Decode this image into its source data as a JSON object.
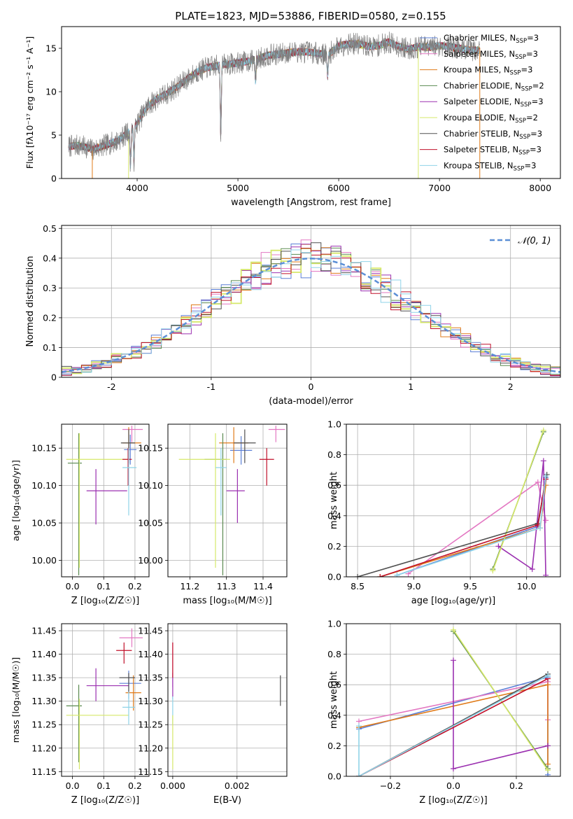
{
  "figure_title": "PLATE=1823, MJD=53886, FIBERID=0580, z=0.155",
  "series": [
    {
      "name": "Chabrier MILES",
      "nssp": "3",
      "color": "#5b7fd6"
    },
    {
      "name": "Salpeter MILES",
      "nssp": "3",
      "color": "#e377c2"
    },
    {
      "name": "Kroupa MILES",
      "nssp": "3",
      "color": "#e07b1a"
    },
    {
      "name": "Chabrier ELODIE",
      "nssp": "2",
      "color": "#5a8a50"
    },
    {
      "name": "Salpeter ELODIE",
      "nssp": "3",
      "color": "#9b30b0"
    },
    {
      "name": "Kroupa ELODIE",
      "nssp": "2",
      "color": "#d6e86a"
    },
    {
      "name": "Chabrier STELIB",
      "nssp": "3",
      "color": "#505050"
    },
    {
      "name": "Salpeter STELIB",
      "nssp": "3",
      "color": "#c0102a"
    },
    {
      "name": "Kroupa STELIB",
      "nssp": "3",
      "color": "#8fd3e8"
    }
  ],
  "chart_data": [
    {
      "type": "line",
      "id": "spectrum",
      "title": "PLATE=1823, MJD=53886, FIBERID=0580, z=0.155",
      "xlabel": "wavelength [Angstrom, rest frame]",
      "ylabel": "Flux [fλ10⁻¹⁷ erg cm⁻² s⁻¹ A⁻¹]",
      "xlim": [
        3250,
        8200
      ],
      "ylim": [
        0,
        17.5
      ],
      "xticks": [
        4000,
        5000,
        6000,
        7000,
        8000
      ],
      "yticks": [
        0,
        5,
        10,
        15
      ],
      "legend": "right",
      "data_color": "#808080",
      "data_envelope": {
        "x": [
          3320,
          3400,
          3500,
          3560,
          3600,
          3700,
          3800,
          3900,
          4000,
          4100,
          4200,
          4300,
          4400,
          4500,
          4600,
          4700,
          4800,
          4900,
          5000,
          5100,
          5200,
          5300,
          5400,
          5500,
          5600,
          5700,
          5800,
          5900,
          6000,
          6100,
          6200,
          6300,
          6400,
          6500,
          6600,
          6700,
          6800,
          6900,
          7000,
          7100,
          7200,
          7300,
          7400
        ],
        "y": [
          3.7,
          3.8,
          3.6,
          3.3,
          3.5,
          3.9,
          4.3,
          5.2,
          6.3,
          8.3,
          9.2,
          9.8,
          10.6,
          11.5,
          12.3,
          12.8,
          13.0,
          13.2,
          13.3,
          13.5,
          13.8,
          14.2,
          14.3,
          14.5,
          14.6,
          14.6,
          14.4,
          14.3,
          15.3,
          15.5,
          15.5,
          15.2,
          15.3,
          15.7,
          15.2,
          14.9,
          15.2,
          15.1,
          15.3,
          15.2,
          15.0,
          14.8,
          14.8
        ]
      },
      "absorption_features": [
        {
          "x": 3934,
          "y": 1.2
        },
        {
          "x": 3968,
          "y": 1.8
        },
        {
          "x": 4830,
          "y": 4.2
        },
        {
          "x": 5175,
          "y": 11.0
        },
        {
          "x": 5890,
          "y": 11.5
        }
      ]
    },
    {
      "type": "line",
      "id": "residuals",
      "xlabel": "(data-model)/error",
      "ylabel": "Normed distribution",
      "xlim": [
        -2.5,
        2.5
      ],
      "ylim": [
        0,
        0.51
      ],
      "xticks": [
        -2,
        -1,
        0,
        1,
        2
      ],
      "yticks": [
        0.0,
        0.1,
        0.2,
        0.3,
        0.4,
        0.5
      ],
      "grid": true,
      "legend": "top-right",
      "reference": {
        "name": "𝒩(0, 1)",
        "mean": 0,
        "sd": 1,
        "color": "#5b8fd6"
      },
      "bin_width": 0.1
    },
    {
      "type": "scatter",
      "id": "age_vs_Z",
      "xlabel": "Z [log₁₀(Z/Z☉)]",
      "ylabel": "age  [log₁₀(age/yr)]",
      "xlim": [
        -0.035,
        0.245
      ],
      "ylim": [
        9.978,
        10.182
      ],
      "xticks": [
        0.0,
        0.1,
        0.2
      ],
      "xtick_labels": [
        "0.0",
        "0.1",
        "0.2"
      ],
      "yticks": [
        10.0,
        10.05,
        10.1,
        10.15
      ],
      "ytick_labels": [
        "10.00",
        "10.05",
        "10.10",
        "10.15"
      ],
      "grid": true,
      "points": [
        {
          "s": 0,
          "x": 0.185,
          "y": 10.148,
          "xe": [
            0.165,
            0.205
          ],
          "ye": [
            10.128,
            10.168
          ]
        },
        {
          "s": 1,
          "x": 0.19,
          "y": 10.175,
          "xe": [
            0.16,
            0.225
          ],
          "ye": [
            10.158,
            10.18
          ]
        },
        {
          "s": 2,
          "x": 0.18,
          "y": 10.157,
          "xe": [
            0.16,
            0.22
          ],
          "ye": [
            10.13,
            10.178
          ]
        },
        {
          "s": 3,
          "x": 0.02,
          "y": 10.13,
          "xe": [
            -0.015,
            0.03
          ],
          "ye": [
            9.98,
            10.17
          ]
        },
        {
          "s": 4,
          "x": 0.075,
          "y": 10.093,
          "xe": [
            0.045,
            0.175
          ],
          "ye": [
            10.048,
            10.122
          ]
        },
        {
          "s": 5,
          "x": 0.022,
          "y": 10.135,
          "xe": [
            -0.02,
            0.18
          ],
          "ye": [
            9.99,
            10.17
          ]
        },
        {
          "s": 6,
          "x": 0.18,
          "y": 10.157,
          "xe": [
            0.155,
            0.2
          ],
          "ye": [
            10.13,
            10.175
          ]
        },
        {
          "s": 7,
          "x": 0.178,
          "y": 10.135,
          "xe": [
            0.16,
            0.19
          ],
          "ye": [
            10.1,
            10.15
          ]
        },
        {
          "s": 8,
          "x": 0.18,
          "y": 10.124,
          "xe": [
            0.16,
            0.205
          ],
          "ye": [
            10.06,
            10.15
          ]
        }
      ]
    },
    {
      "type": "scatter",
      "id": "age_vs_mass",
      "xlabel": "mass [log₁₀(M/M☉)]",
      "ylabel": "",
      "xlim": [
        11.14,
        11.465
      ],
      "ylim": [
        9.978,
        10.182
      ],
      "xticks": [
        11.2,
        11.3,
        11.4
      ],
      "xtick_labels": [
        "11.2",
        "11.3",
        "11.4"
      ],
      "yticks": [
        10.0,
        10.05,
        10.1,
        10.15
      ],
      "ytick_labels": [
        "10.00",
        "10.05",
        "10.10",
        "10.15"
      ],
      "grid": true,
      "points": [
        {
          "s": 0,
          "x": 11.34,
          "y": 10.147,
          "xe": [
            11.31,
            11.37
          ],
          "ye": [
            10.128,
            10.166
          ]
        },
        {
          "s": 1,
          "x": 11.435,
          "y": 10.175,
          "xe": [
            11.415,
            11.46
          ],
          "ye": [
            10.158,
            10.18
          ]
        },
        {
          "s": 2,
          "x": 11.32,
          "y": 10.157,
          "xe": [
            11.28,
            11.36
          ],
          "ye": [
            10.13,
            10.178
          ]
        },
        {
          "s": 3,
          "x": 11.29,
          "y": 10.135,
          "xe": [
            11.24,
            11.3
          ],
          "ye": [
            9.98,
            10.17
          ]
        },
        {
          "s": 4,
          "x": 11.33,
          "y": 10.093,
          "xe": [
            11.3,
            11.35
          ],
          "ye": [
            10.05,
            10.122
          ]
        },
        {
          "s": 5,
          "x": 11.27,
          "y": 10.135,
          "xe": [
            11.17,
            11.31
          ],
          "ye": [
            9.99,
            10.17
          ]
        },
        {
          "s": 6,
          "x": 11.35,
          "y": 10.157,
          "xe": [
            11.32,
            11.38
          ],
          "ye": [
            10.13,
            10.175
          ]
        },
        {
          "s": 7,
          "x": 11.41,
          "y": 10.135,
          "xe": [
            11.39,
            11.43
          ],
          "ye": [
            10.1,
            10.15
          ]
        },
        {
          "s": 8,
          "x": 11.285,
          "y": 10.124,
          "xe": [
            11.27,
            11.3
          ],
          "ye": [
            10.06,
            10.15
          ]
        }
      ]
    },
    {
      "type": "line",
      "id": "weight_vs_age",
      "xlabel": "age  [log₁₀(age/yr)]",
      "ylabel": "mass weight",
      "xlim": [
        8.4,
        10.3
      ],
      "ylim": [
        0,
        1
      ],
      "xticks": [
        8.5,
        9.0,
        9.5,
        10.0
      ],
      "xtick_labels": [
        "8.5",
        "9.0",
        "9.5",
        "10.0"
      ],
      "yticks": [
        0.0,
        0.2,
        0.4,
        0.6,
        0.8,
        1.0
      ],
      "ytick_labels": [
        "0.0",
        "0.2",
        "0.4",
        "0.6",
        "0.8",
        "1.0"
      ],
      "grid": true,
      "lines": [
        {
          "s": 0,
          "x": [
            8.85,
            10.1,
            10.17
          ],
          "y": [
            0.01,
            0.33,
            0.65
          ]
        },
        {
          "s": 1,
          "x": [
            8.95,
            10.1,
            10.17
          ],
          "y": [
            0.02,
            0.62,
            0.37
          ]
        },
        {
          "s": 2,
          "x": [
            8.7,
            10.12,
            10.17
          ],
          "y": [
            0.0,
            0.32,
            0.6
          ]
        },
        {
          "s": 3,
          "x": [
            9.7,
            10.15
          ],
          "y": [
            0.05,
            0.95
          ]
        },
        {
          "s": 4,
          "x": [
            9.75,
            10.05,
            10.15,
            10.17
          ],
          "y": [
            0.2,
            0.05,
            0.76,
            0.01
          ]
        },
        {
          "s": 5,
          "x": [
            9.7,
            10.15
          ],
          "y": [
            0.04,
            0.96
          ]
        },
        {
          "s": 6,
          "x": [
            8.5,
            10.1,
            10.18
          ],
          "y": [
            0.0,
            0.35,
            0.67
          ]
        },
        {
          "s": 7,
          "x": [
            8.7,
            10.1,
            10.17
          ],
          "y": [
            0.0,
            0.34,
            0.64
          ]
        },
        {
          "s": 8,
          "x": [
            8.85,
            10.12,
            10.17
          ],
          "y": [
            0.01,
            0.32,
            0.66
          ]
        }
      ]
    },
    {
      "type": "scatter",
      "id": "mass_vs_Z",
      "xlabel": "Z [log₁₀(Z/Z☉)]",
      "ylabel": "mass [log₁₀(M/M☉)]",
      "xlim": [
        -0.035,
        0.245
      ],
      "ylim": [
        11.14,
        11.465
      ],
      "xticks": [
        0.0,
        0.1,
        0.2
      ],
      "xtick_labels": [
        "0.0",
        "0.1",
        "0.2"
      ],
      "yticks": [
        11.15,
        11.2,
        11.25,
        11.3,
        11.35,
        11.4,
        11.45
      ],
      "ytick_labels": [
        "11.15",
        "11.20",
        "11.25",
        "11.30",
        "11.35",
        "11.40",
        "11.45"
      ],
      "grid": true,
      "points": [
        {
          "s": 0,
          "x": 0.18,
          "y": 11.338,
          "xe": [
            0.15,
            0.22
          ],
          "ye": [
            11.305,
            11.365
          ]
        },
        {
          "s": 1,
          "x": 0.19,
          "y": 11.435,
          "xe": [
            0.15,
            0.225
          ],
          "ye": [
            11.415,
            11.455
          ]
        },
        {
          "s": 2,
          "x": 0.195,
          "y": 11.318,
          "xe": [
            0.17,
            0.22
          ],
          "ye": [
            11.28,
            11.355
          ]
        },
        {
          "s": 3,
          "x": 0.02,
          "y": 11.29,
          "xe": [
            -0.02,
            0.03
          ],
          "ye": [
            11.17,
            11.335
          ]
        },
        {
          "s": 4,
          "x": 0.075,
          "y": 11.333,
          "xe": [
            0.045,
            0.18
          ],
          "ye": [
            11.3,
            11.37
          ]
        },
        {
          "s": 5,
          "x": 0.022,
          "y": 11.27,
          "xe": [
            -0.02,
            0.18
          ],
          "ye": [
            11.155,
            11.305
          ]
        },
        {
          "s": 6,
          "x": 0.18,
          "y": 11.35,
          "xe": [
            0.15,
            0.2
          ],
          "ye": [
            11.32,
            11.36
          ]
        },
        {
          "s": 7,
          "x": 0.165,
          "y": 11.408,
          "xe": [
            0.14,
            0.19
          ],
          "ye": [
            11.38,
            11.425
          ]
        },
        {
          "s": 8,
          "x": 0.18,
          "y": 11.287,
          "xe": [
            0.16,
            0.2
          ],
          "ye": [
            11.25,
            11.32
          ]
        }
      ]
    },
    {
      "type": "scatter",
      "id": "mass_vs_EBV",
      "xlabel": "E(B-V)",
      "ylabel": "",
      "xlim": [
        -0.00015,
        0.00355
      ],
      "ylim": [
        11.14,
        11.465
      ],
      "xticks": [
        0.0,
        0.002
      ],
      "xtick_labels": [
        "0.000",
        "0.002"
      ],
      "yticks": [
        11.15,
        11.2,
        11.25,
        11.3,
        11.35,
        11.4,
        11.45
      ],
      "ytick_labels": [
        "11.15",
        "11.20",
        "11.25",
        "11.30",
        "11.35",
        "11.40",
        "11.45"
      ],
      "grid": true,
      "points": [
        {
          "s": 1,
          "x": 0.0,
          "y": 11.38,
          "xe": [
            0.0,
            0.0
          ],
          "ye": [
            11.33,
            11.425
          ]
        },
        {
          "s": 4,
          "x": 0.0,
          "y": 11.33,
          "xe": [
            0.0,
            0.0
          ],
          "ye": [
            11.305,
            11.36
          ]
        },
        {
          "s": 7,
          "x": 0.0,
          "y": 11.39,
          "xe": [
            0.0,
            0.0
          ],
          "ye": [
            11.35,
            11.425
          ]
        },
        {
          "s": 8,
          "x": 0.0,
          "y": 11.28,
          "xe": [
            0.0,
            0.0
          ],
          "ye": [
            11.25,
            11.31
          ]
        },
        {
          "s": 5,
          "x": 0.0,
          "y": 11.2,
          "xe": [
            0.0,
            0.0
          ],
          "ye": [
            11.155,
            11.27
          ]
        },
        {
          "s": 6,
          "x": 0.00335,
          "y": 11.322,
          "xe": [
            0.00335,
            0.00335
          ],
          "ye": [
            11.29,
            11.355
          ]
        }
      ]
    },
    {
      "type": "line",
      "id": "weight_vs_Z",
      "xlabel": "Z [log₁₀(Z/Z☉)]",
      "ylabel": "mass weight",
      "xlim": [
        -0.34,
        0.34
      ],
      "ylim": [
        0,
        1
      ],
      "xticks": [
        -0.2,
        0.0,
        0.2
      ],
      "xtick_labels": [
        "−0.2",
        "0.0",
        "0.2"
      ],
      "yticks": [
        0.0,
        0.2,
        0.4,
        0.6,
        0.8,
        1.0
      ],
      "ytick_labels": [
        "0.0",
        "0.2",
        "0.4",
        "0.6",
        "0.8",
        "1.0"
      ],
      "grid": true,
      "lines": [
        {
          "s": 0,
          "x": [
            -0.3,
            0.3,
            0.3
          ],
          "y": [
            0.31,
            0.65,
            0.01
          ]
        },
        {
          "s": 1,
          "x": [
            -0.3,
            0.3,
            0.3
          ],
          "y": [
            0.36,
            0.62,
            0.37
          ]
        },
        {
          "s": 2,
          "x": [
            -0.3,
            0.3,
            0.3
          ],
          "y": [
            0.32,
            0.6,
            0.08
          ]
        },
        {
          "s": 3,
          "x": [
            0.0,
            0.3
          ],
          "y": [
            0.95,
            0.05
          ]
        },
        {
          "s": 4,
          "x": [
            0.0,
            0.0,
            0.3
          ],
          "y": [
            0.76,
            0.05,
            0.2
          ]
        },
        {
          "s": 5,
          "x": [
            0.0,
            0.3
          ],
          "y": [
            0.96,
            0.04
          ]
        },
        {
          "s": 6,
          "x": [
            -0.3,
            0.3
          ],
          "y": [
            0.0,
            0.67
          ]
        },
        {
          "s": 7,
          "x": [
            -0.3,
            0.3
          ],
          "y": [
            0.0,
            0.64
          ]
        },
        {
          "s": 8,
          "x": [
            -0.3,
            -0.3,
            0.3
          ],
          "y": [
            0.33,
            0.0,
            0.66
          ]
        }
      ]
    }
  ]
}
